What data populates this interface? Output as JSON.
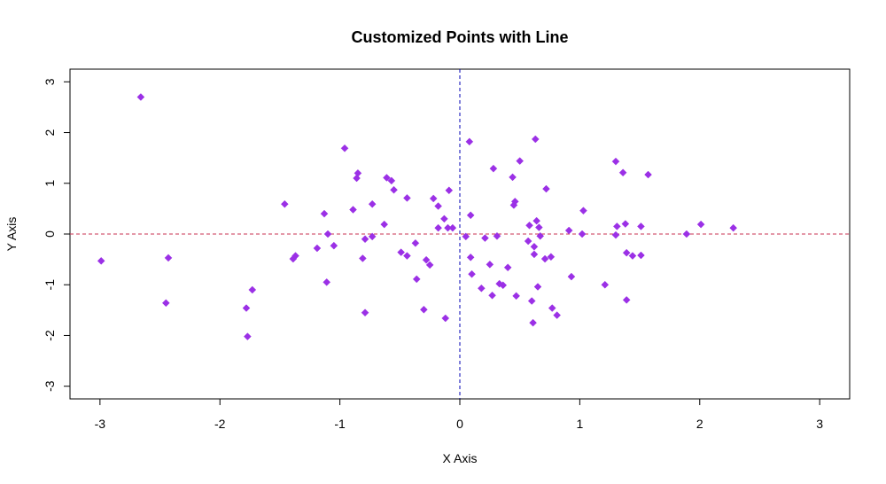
{
  "chart_data": {
    "type": "scatter",
    "title": "Customized Points with Line",
    "xlabel": "X Axis",
    "ylabel": "Y Axis",
    "xlim": [
      -3.25,
      3.25
    ],
    "ylim": [
      -3.25,
      3.25
    ],
    "x_ticks": [
      -3,
      -2,
      -1,
      0,
      1,
      2,
      3
    ],
    "y_ticks": [
      -3,
      -2,
      -1,
      0,
      1,
      2,
      3
    ],
    "point_color": "#9b30e6",
    "point_shape": "diamond",
    "reference_lines": [
      {
        "orientation": "horizontal",
        "value": 0,
        "color": "#c83250",
        "style": "dashed"
      },
      {
        "orientation": "vertical",
        "value": 0,
        "color": "#0000b4",
        "style": "dashed"
      }
    ],
    "grid": false,
    "points": [
      {
        "x": -2.99,
        "y": -0.53
      },
      {
        "x": -2.66,
        "y": 2.7
      },
      {
        "x": -2.45,
        "y": -1.36
      },
      {
        "x": -2.43,
        "y": -0.47
      },
      {
        "x": -1.78,
        "y": -1.46
      },
      {
        "x": -1.77,
        "y": -2.02
      },
      {
        "x": -1.73,
        "y": -1.1
      },
      {
        "x": -1.46,
        "y": 0.59
      },
      {
        "x": -1.39,
        "y": -0.49
      },
      {
        "x": -1.37,
        "y": -0.43
      },
      {
        "x": -1.19,
        "y": -0.28
      },
      {
        "x": -1.13,
        "y": 0.4
      },
      {
        "x": -1.11,
        "y": -0.95
      },
      {
        "x": -1.1,
        "y": 0.0
      },
      {
        "x": -1.05,
        "y": -0.23
      },
      {
        "x": -0.96,
        "y": 1.69
      },
      {
        "x": -0.89,
        "y": 0.48
      },
      {
        "x": -0.86,
        "y": 1.1
      },
      {
        "x": -0.85,
        "y": 1.2
      },
      {
        "x": -0.81,
        "y": -0.48
      },
      {
        "x": -0.79,
        "y": -0.1
      },
      {
        "x": -0.79,
        "y": -1.55
      },
      {
        "x": -0.73,
        "y": -0.05
      },
      {
        "x": -0.73,
        "y": 0.59
      },
      {
        "x": -0.63,
        "y": 0.19
      },
      {
        "x": -0.61,
        "y": 1.11
      },
      {
        "x": -0.57,
        "y": 1.05
      },
      {
        "x": -0.55,
        "y": 0.87
      },
      {
        "x": -0.49,
        "y": -0.36
      },
      {
        "x": -0.44,
        "y": -0.43
      },
      {
        "x": -0.44,
        "y": 0.71
      },
      {
        "x": -0.37,
        "y": -0.18
      },
      {
        "x": -0.36,
        "y": -0.89
      },
      {
        "x": -0.3,
        "y": -1.49
      },
      {
        "x": -0.28,
        "y": -0.51
      },
      {
        "x": -0.25,
        "y": -0.61
      },
      {
        "x": -0.22,
        "y": 0.7
      },
      {
        "x": -0.18,
        "y": 0.55
      },
      {
        "x": -0.18,
        "y": 0.12
      },
      {
        "x": -0.13,
        "y": 0.3
      },
      {
        "x": -0.12,
        "y": -1.66
      },
      {
        "x": -0.1,
        "y": 0.12
      },
      {
        "x": -0.09,
        "y": 0.86
      },
      {
        "x": -0.06,
        "y": 0.12
      },
      {
        "x": 0.05,
        "y": -0.05
      },
      {
        "x": 0.08,
        "y": 1.82
      },
      {
        "x": 0.09,
        "y": 0.37
      },
      {
        "x": 0.09,
        "y": -0.46
      },
      {
        "x": 0.1,
        "y": -0.79
      },
      {
        "x": 0.18,
        "y": -1.07
      },
      {
        "x": 0.21,
        "y": -0.08
      },
      {
        "x": 0.25,
        "y": -0.6
      },
      {
        "x": 0.27,
        "y": -1.21
      },
      {
        "x": 0.28,
        "y": 1.29
      },
      {
        "x": 0.31,
        "y": -0.04
      },
      {
        "x": 0.33,
        "y": -0.98
      },
      {
        "x": 0.36,
        "y": -1.01
      },
      {
        "x": 0.4,
        "y": -0.66
      },
      {
        "x": 0.44,
        "y": 1.12
      },
      {
        "x": 0.45,
        "y": 0.57
      },
      {
        "x": 0.46,
        "y": 0.64
      },
      {
        "x": 0.47,
        "y": -1.22
      },
      {
        "x": 0.5,
        "y": 1.44
      },
      {
        "x": 0.57,
        "y": -0.14
      },
      {
        "x": 0.58,
        "y": 0.17
      },
      {
        "x": 0.6,
        "y": -1.32
      },
      {
        "x": 0.61,
        "y": -1.75
      },
      {
        "x": 0.62,
        "y": -0.25
      },
      {
        "x": 0.62,
        "y": -0.4
      },
      {
        "x": 0.63,
        "y": 1.87
      },
      {
        "x": 0.64,
        "y": 0.26
      },
      {
        "x": 0.65,
        "y": -1.04
      },
      {
        "x": 0.66,
        "y": 0.13
      },
      {
        "x": 0.67,
        "y": -0.04
      },
      {
        "x": 0.71,
        "y": -0.49
      },
      {
        "x": 0.72,
        "y": 0.89
      },
      {
        "x": 0.76,
        "y": -0.45
      },
      {
        "x": 0.77,
        "y": -1.46
      },
      {
        "x": 0.81,
        "y": -1.6
      },
      {
        "x": 0.91,
        "y": 0.07
      },
      {
        "x": 0.93,
        "y": -0.84
      },
      {
        "x": 1.02,
        "y": 0.0
      },
      {
        "x": 1.03,
        "y": 0.46
      },
      {
        "x": 1.21,
        "y": -1.0
      },
      {
        "x": 1.3,
        "y": 1.43
      },
      {
        "x": 1.3,
        "y": -0.02
      },
      {
        "x": 1.31,
        "y": 0.15
      },
      {
        "x": 1.36,
        "y": 1.21
      },
      {
        "x": 1.38,
        "y": 0.2
      },
      {
        "x": 1.39,
        "y": -1.3
      },
      {
        "x": 1.39,
        "y": -0.37
      },
      {
        "x": 1.44,
        "y": -0.43
      },
      {
        "x": 1.51,
        "y": 0.15
      },
      {
        "x": 1.51,
        "y": -0.42
      },
      {
        "x": 1.57,
        "y": 1.17
      },
      {
        "x": 1.89,
        "y": 0.0
      },
      {
        "x": 2.01,
        "y": 0.19
      },
      {
        "x": 2.28,
        "y": 0.12
      }
    ]
  }
}
